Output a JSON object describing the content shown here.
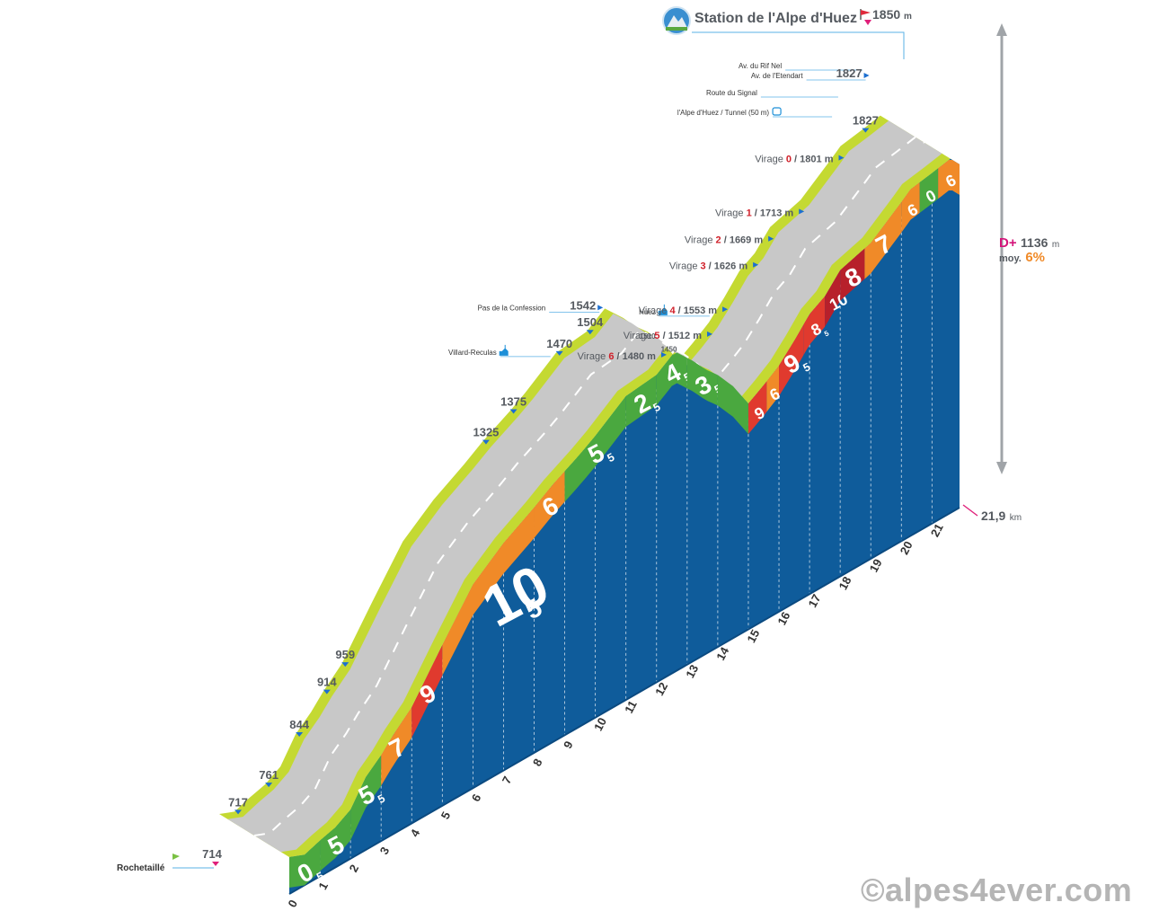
{
  "title": "Station de l'Alpe d'Huez",
  "summit": {
    "altitude": "1850",
    "unit": "m"
  },
  "end_distance": {
    "value": "21,9",
    "unit": "km"
  },
  "totals": {
    "d_label": "D+",
    "gain": "1136",
    "gain_unit": "m",
    "avg_label": "moy.",
    "avg_value": "6%"
  },
  "start_label": "Rochetaillé",
  "copyright": "©alpes4ever.com",
  "colors": {
    "side": "#0f5c9b",
    "road": "#c8c8c8",
    "verge": "#c4d932",
    "green": "#4aa83f",
    "orange": "#f08a28",
    "red": "#e03a2e",
    "darkred": "#b7202b"
  },
  "profile": [
    {
      "km": 0,
      "alt": 714
    },
    {
      "km": 0.5,
      "alt": 717
    },
    {
      "km": 1,
      "alt": 740
    },
    {
      "km": 1.5,
      "alt": 761
    },
    {
      "km": 2,
      "alt": 790
    },
    {
      "km": 2.5,
      "alt": 844
    },
    {
      "km": 3,
      "alt": 880
    },
    {
      "km": 3.4,
      "alt": 914
    },
    {
      "km": 4,
      "alt": 959
    },
    {
      "km": 5,
      "alt": 1062
    },
    {
      "km": 6,
      "alt": 1162
    },
    {
      "km": 7,
      "alt": 1230
    },
    {
      "km": 8,
      "alt": 1288
    },
    {
      "km": 8.6,
      "alt": 1325
    },
    {
      "km": 9.5,
      "alt": 1375
    },
    {
      "km": 10,
      "alt": 1405
    },
    {
      "km": 11,
      "alt": 1470
    },
    {
      "km": 12,
      "alt": 1504
    },
    {
      "km": 12.6,
      "alt": 1542
    },
    {
      "km": 13.2,
      "alt": 1525
    },
    {
      "km": 13.6,
      "alt": 1510
    },
    {
      "km": 14,
      "alt": 1500
    },
    {
      "km": 14.5,
      "alt": 1480
    },
    {
      "km": 15,
      "alt": 1450
    },
    {
      "km": 15.5,
      "alt": 1480
    },
    {
      "km": 16,
      "alt": 1512
    },
    {
      "km": 16.5,
      "alt": 1553
    },
    {
      "km": 17,
      "alt": 1597
    },
    {
      "km": 17.5,
      "alt": 1626
    },
    {
      "km": 18,
      "alt": 1669
    },
    {
      "km": 19,
      "alt": 1713
    },
    {
      "km": 20,
      "alt": 1780
    },
    {
      "km": 20.3,
      "alt": 1801
    },
    {
      "km": 21,
      "alt": 1827
    },
    {
      "km": 21.6,
      "alt": 1850
    },
    {
      "km": 21.9,
      "alt": 1840
    }
  ],
  "segments": [
    {
      "from": 0,
      "to": 1,
      "grade": "0",
      "sub": "5",
      "color": "green"
    },
    {
      "from": 1,
      "to": 2,
      "grade": "5",
      "sub": "",
      "color": "green"
    },
    {
      "from": 2,
      "to": 3,
      "grade": "5",
      "sub": "5",
      "color": "green"
    },
    {
      "from": 3,
      "to": 4,
      "grade": "7",
      "sub": "",
      "color": "orange"
    },
    {
      "from": 4,
      "to": 5,
      "grade": "9",
      "sub": "",
      "color": "red"
    },
    {
      "from": 5,
      "to": 8,
      "grade": "10",
      "sub": "5",
      "color": "orange",
      "big": true
    },
    {
      "from": 8,
      "to": 9,
      "grade": "6",
      "sub": "",
      "color": "orange"
    },
    {
      "from": 9,
      "to": 11,
      "grade": "5",
      "sub": "5",
      "color": "green"
    },
    {
      "from": 11,
      "to": 12,
      "grade": "2",
      "sub": "5",
      "color": "green"
    },
    {
      "from": 12,
      "to": 13,
      "grade": "4",
      "sub": "5",
      "color": "green"
    },
    {
      "from": 13,
      "to": 14,
      "grade": "3",
      "sub": "5",
      "color": "green"
    },
    {
      "from": 14,
      "to": 15,
      "grade": "",
      "sub": "",
      "color": "green"
    },
    {
      "from": 15,
      "to": 15.6,
      "grade": "9",
      "sub": "",
      "color": "red"
    },
    {
      "from": 15.6,
      "to": 16,
      "grade": "6",
      "sub": "",
      "color": "orange"
    },
    {
      "from": 16,
      "to": 16.8,
      "grade": "9",
      "sub": "5",
      "color": "red"
    },
    {
      "from": 16.8,
      "to": 17.5,
      "grade": "8",
      "sub": "5",
      "color": "red"
    },
    {
      "from": 17.5,
      "to": 18,
      "grade": "10",
      "sub": "",
      "color": "darkred"
    },
    {
      "from": 18,
      "to": 18.8,
      "grade": "8",
      "sub": "",
      "color": "darkred"
    },
    {
      "from": 18.8,
      "to": 20,
      "grade": "7",
      "sub": "",
      "color": "orange"
    },
    {
      "from": 20,
      "to": 20.6,
      "grade": "6",
      "sub": "",
      "color": "orange"
    },
    {
      "from": 20.6,
      "to": 21.2,
      "grade": "0",
      "sub": "",
      "color": "green"
    },
    {
      "from": 21.2,
      "to": 21.9,
      "grade": "6",
      "sub": "",
      "color": "orange"
    }
  ],
  "km_ticks": [
    "0",
    "1",
    "2",
    "3",
    "4",
    "5",
    "6",
    "7",
    "8",
    "9",
    "10",
    "11",
    "12",
    "13",
    "14",
    "15",
    "16",
    "17",
    "18",
    "19",
    "20",
    "21"
  ],
  "altitude_labels": [
    {
      "km": 0.5,
      "alt": "717"
    },
    {
      "km": 1.5,
      "alt": "761"
    },
    {
      "km": 2.5,
      "alt": "844"
    },
    {
      "km": 3.4,
      "alt": "914"
    },
    {
      "km": 4,
      "alt": "959"
    },
    {
      "km": 8.6,
      "alt": "1325"
    },
    {
      "km": 9.5,
      "alt": "1375"
    },
    {
      "km": 11,
      "alt": "1470"
    },
    {
      "km": 12,
      "alt": "1504"
    },
    {
      "km": 21,
      "alt": "1827"
    }
  ],
  "places": [
    {
      "km": 11,
      "text": "Villard-Reculas",
      "alt": "",
      "icon": "church"
    },
    {
      "km": 12.6,
      "text": "Pas de la Confession",
      "alt": "1542",
      "icon": ""
    },
    {
      "km": 16.2,
      "text": "Huez",
      "alt": "",
      "icon": "church"
    },
    {
      "km": 21.2,
      "text": "Av. du Rif Nel",
      "alt": "",
      "icon": ""
    },
    {
      "km": 21.3,
      "text": "Av. de l'Etendart",
      "alt": "1827",
      "icon": ""
    },
    {
      "km": 20.4,
      "text": "Route du Signal",
      "alt": "",
      "icon": ""
    },
    {
      "km": 20.2,
      "text": "l'Alpe d'Huez / Tunnel (50 m)",
      "alt": "",
      "icon": "tunnel"
    }
  ],
  "mini_labels": [
    {
      "km": 13.7,
      "alt": "1510"
    },
    {
      "km": 14.4,
      "alt": "1450"
    }
  ],
  "virages": [
    {
      "word": "Virage",
      "num": "0",
      "alt": "1801 m",
      "km": 20.3
    },
    {
      "word": "Virage",
      "num": "1",
      "alt": "1713 m",
      "km": 19
    },
    {
      "word": "Virage",
      "num": "2",
      "alt": "1669 m",
      "km": 18
    },
    {
      "word": "Virage",
      "num": "3",
      "alt": "1626 m",
      "km": 17.5
    },
    {
      "word": "Virage",
      "num": "4",
      "alt": "1553 m",
      "km": 16.5
    },
    {
      "word": "Virage",
      "num": "5",
      "alt": "1512 m",
      "km": 16
    },
    {
      "word": "Virage",
      "num": "6",
      "alt": "1480 m",
      "km": 14.5
    }
  ]
}
